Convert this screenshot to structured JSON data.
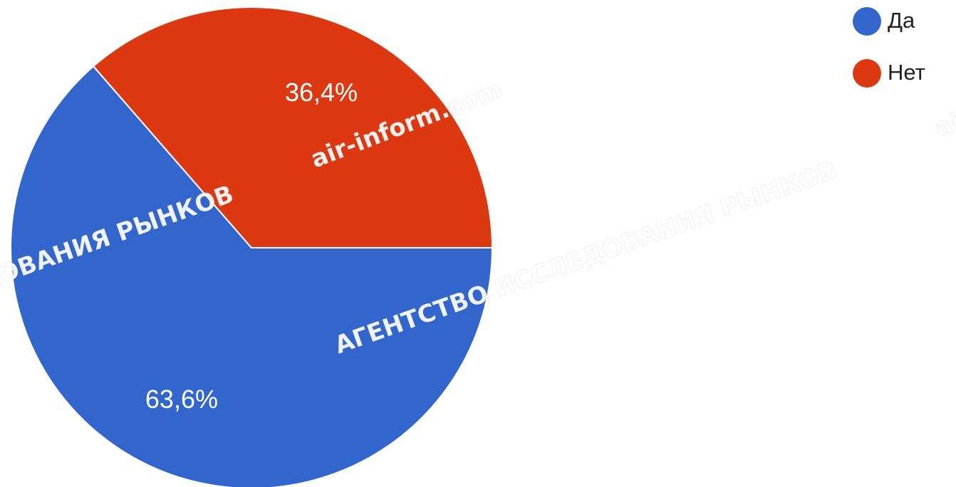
{
  "chart_data": {
    "type": "pie",
    "categories": [
      "Да",
      "Нет"
    ],
    "values": [
      63.6,
      36.4
    ],
    "value_labels": [
      "63,6%",
      "36,4%"
    ],
    "colors": [
      "#3366cc",
      "#dc3912"
    ],
    "legend": "top-right",
    "watermarks": [
      "АГЕНТСТВО ИССЛЕДОВАНИЯ РЫНКОВ",
      "air-inform.com"
    ]
  }
}
